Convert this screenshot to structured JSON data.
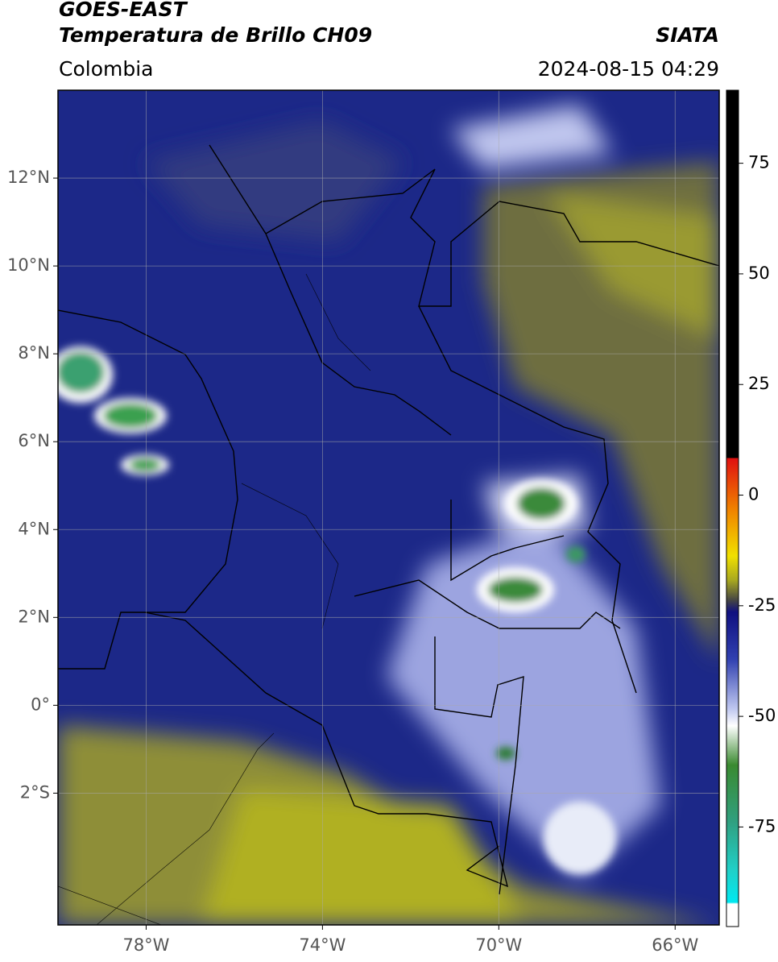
{
  "header": {
    "title": "GOES-EAST",
    "subtitle": "Temperatura de Brillo CH09",
    "source": "SIATA",
    "region": "Colombia",
    "datetime": "2024-08-15 04:29"
  },
  "map": {
    "lonlim": [
      -80,
      -65
    ],
    "latlim": [
      -5,
      14
    ],
    "lon_ticks": [
      {
        "value": -78,
        "label": "78°W"
      },
      {
        "value": -74,
        "label": "74°W"
      },
      {
        "value": -70,
        "label": "70°W"
      },
      {
        "value": -66,
        "label": "66°W"
      }
    ],
    "lat_ticks": [
      {
        "value": 12,
        "label": "12°N"
      },
      {
        "value": 10,
        "label": "10°N"
      },
      {
        "value": 8,
        "label": "8°N"
      },
      {
        "value": 6,
        "label": "6°N"
      },
      {
        "value": 4,
        "label": "4°N"
      },
      {
        "value": 2,
        "label": "2°N"
      },
      {
        "value": 0,
        "label": "0°"
      },
      {
        "value": -2,
        "label": "2°S"
      }
    ]
  },
  "colorbar": {
    "lim": [
      -97.5,
      91.5
    ],
    "ticks": [
      75,
      50,
      25,
      0,
      -25,
      -50,
      -75
    ]
  }
}
